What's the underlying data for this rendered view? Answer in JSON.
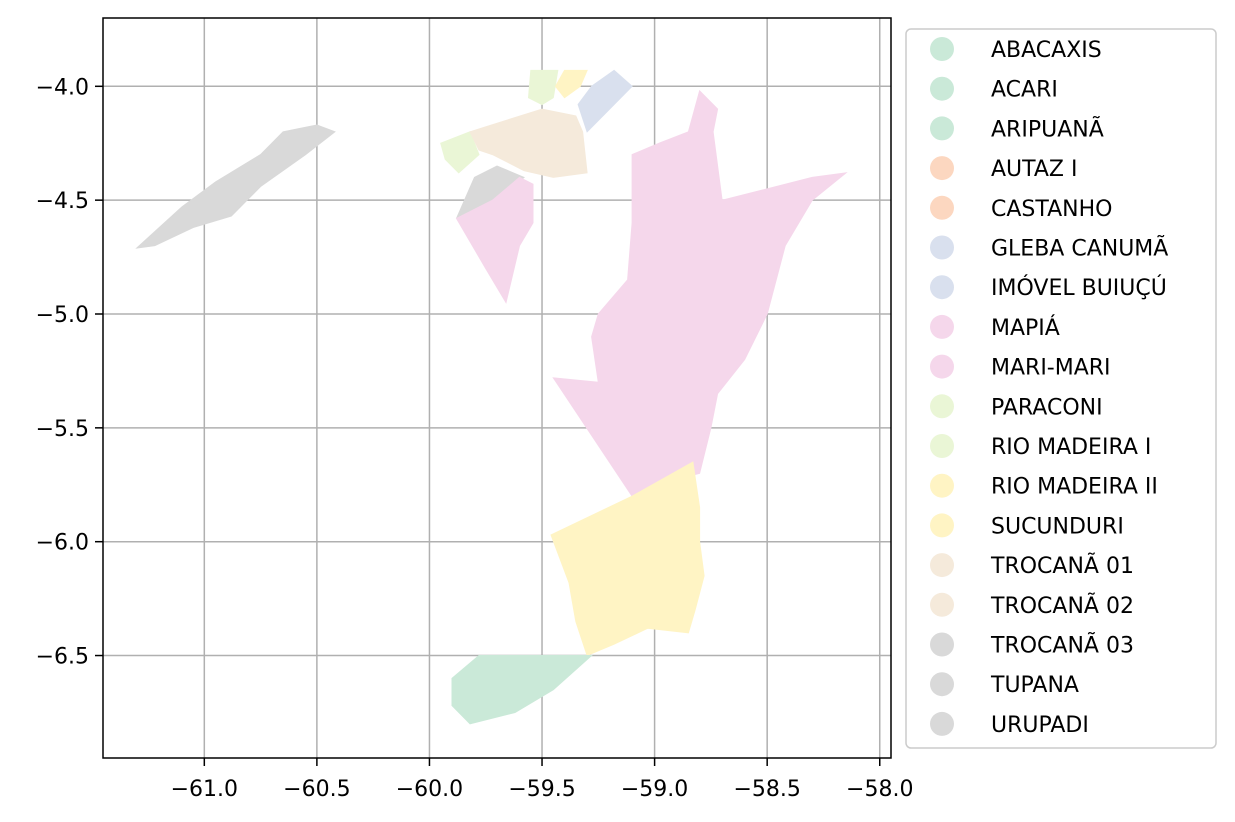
{
  "chart_data": {
    "type": "map",
    "xlim": [
      -61.45,
      -57.95
    ],
    "ylim": [
      -6.95,
      -3.7
    ],
    "x_ticks": [
      {
        "value": -61.0,
        "label": "−61.0"
      },
      {
        "value": -60.5,
        "label": "−60.5"
      },
      {
        "value": -60.0,
        "label": "−60.0"
      },
      {
        "value": -59.5,
        "label": "−59.5"
      },
      {
        "value": -59.0,
        "label": "−59.0"
      },
      {
        "value": -58.5,
        "label": "−58.5"
      },
      {
        "value": -58.0,
        "label": "−58.0"
      }
    ],
    "y_ticks": [
      {
        "value": -4.0,
        "label": "−4.0"
      },
      {
        "value": -4.5,
        "label": "−4.5"
      },
      {
        "value": -5.0,
        "label": "−5.0"
      },
      {
        "value": -5.5,
        "label": "−5.5"
      },
      {
        "value": -6.0,
        "label": "−6.0"
      },
      {
        "value": -6.5,
        "label": "−6.5"
      }
    ],
    "grid": true,
    "legend_position": "outside-right",
    "legend": [
      {
        "name": "ABACAXIS",
        "color": "#cae9d8"
      },
      {
        "name": "ACARI",
        "color": "#cae9d8"
      },
      {
        "name": "ARIPUANÃ",
        "color": "#cae9d8"
      },
      {
        "name": "AUTAZ I",
        "color": "#fcd7c0"
      },
      {
        "name": "CASTANHO",
        "color": "#fcd7c0"
      },
      {
        "name": "GLEBA CANUMÃ",
        "color": "#d9e0ee"
      },
      {
        "name": "IMÓVEL BUIUÇÚ",
        "color": "#d9e0ee"
      },
      {
        "name": "MAPIÁ",
        "color": "#f5d7eb"
      },
      {
        "name": "MARI-MARI",
        "color": "#f5d7eb"
      },
      {
        "name": "PARACONI",
        "color": "#eaf6d6"
      },
      {
        "name": "RIO MADEIRA I",
        "color": "#eaf6d6"
      },
      {
        "name": "RIO MADEIRA II",
        "color": "#fff4c4"
      },
      {
        "name": "SUCUNDURI",
        "color": "#fff4c4"
      },
      {
        "name": "TROCANÃ 01",
        "color": "#f5eadb"
      },
      {
        "name": "TROCANÃ 02",
        "color": "#f5eadb"
      },
      {
        "name": "TROCANÃ 03",
        "color": "#d9d9d9"
      },
      {
        "name": "TUPANA",
        "color": "#d9d9d9"
      },
      {
        "name": "URUPADI",
        "color": "#d9d9d9"
      }
    ],
    "regions": [
      {
        "color": "#d9d9d9",
        "coords": [
          [
            -61.3,
            -4.71
          ],
          [
            -61.1,
            -4.53
          ],
          [
            -60.95,
            -4.42
          ],
          [
            -60.75,
            -4.3
          ],
          [
            -60.65,
            -4.2
          ],
          [
            -60.5,
            -4.17
          ],
          [
            -60.42,
            -4.2
          ],
          [
            -60.55,
            -4.3
          ],
          [
            -60.75,
            -4.44
          ],
          [
            -60.88,
            -4.57
          ],
          [
            -61.05,
            -4.62
          ],
          [
            -61.22,
            -4.7
          ]
        ]
      },
      {
        "color": "#d9d9d9",
        "coords": [
          [
            -59.88,
            -4.58
          ],
          [
            -59.8,
            -4.4
          ],
          [
            -59.7,
            -4.35
          ],
          [
            -59.58,
            -4.4
          ],
          [
            -59.7,
            -4.5
          ],
          [
            -59.78,
            -4.64
          ]
        ]
      },
      {
        "color": "#eaf6d6",
        "coords": [
          [
            -59.95,
            -4.25
          ],
          [
            -59.82,
            -4.2
          ],
          [
            -59.78,
            -4.3
          ],
          [
            -59.87,
            -4.38
          ],
          [
            -59.93,
            -4.32
          ]
        ]
      },
      {
        "color": "#f5eadb",
        "coords": [
          [
            -59.82,
            -4.2
          ],
          [
            -59.5,
            -4.1
          ],
          [
            -59.35,
            -4.13
          ],
          [
            -59.32,
            -4.2
          ],
          [
            -59.3,
            -4.38
          ],
          [
            -59.45,
            -4.4
          ],
          [
            -59.58,
            -4.37
          ],
          [
            -59.72,
            -4.3
          ],
          [
            -59.78,
            -4.28
          ]
        ]
      },
      {
        "color": "#eaf6d6",
        "coords": [
          [
            -59.55,
            -3.93
          ],
          [
            -59.43,
            -3.93
          ],
          [
            -59.45,
            -4.05
          ],
          [
            -59.5,
            -4.08
          ],
          [
            -59.56,
            -4.05
          ]
        ]
      },
      {
        "color": "#fff4c4",
        "coords": [
          [
            -59.4,
            -3.93
          ],
          [
            -59.3,
            -3.93
          ],
          [
            -59.33,
            -4.0
          ],
          [
            -59.4,
            -4.05
          ],
          [
            -59.44,
            -4.0
          ]
        ]
      },
      {
        "color": "#d9e0ee",
        "coords": [
          [
            -59.28,
            -4.0
          ],
          [
            -59.18,
            -3.93
          ],
          [
            -59.1,
            -4.0
          ],
          [
            -59.22,
            -4.12
          ],
          [
            -59.3,
            -4.2
          ],
          [
            -59.34,
            -4.08
          ]
        ]
      },
      {
        "color": "#f5d7eb",
        "coords": [
          [
            -59.88,
            -4.58
          ],
          [
            -59.72,
            -4.5
          ],
          [
            -59.6,
            -4.4
          ],
          [
            -59.54,
            -4.43
          ],
          [
            -59.54,
            -4.6
          ],
          [
            -59.6,
            -4.7
          ],
          [
            -59.66,
            -4.95
          ],
          [
            -59.75,
            -4.8
          ]
        ]
      },
      {
        "color": "#f5d7eb",
        "coords": [
          [
            -58.8,
            -4.02
          ],
          [
            -58.85,
            -4.2
          ],
          [
            -58.98,
            -4.25
          ],
          [
            -59.1,
            -4.3
          ],
          [
            -59.1,
            -4.6
          ],
          [
            -59.12,
            -4.85
          ],
          [
            -59.25,
            -5.0
          ],
          [
            -59.28,
            -5.1
          ],
          [
            -59.25,
            -5.3
          ],
          [
            -59.45,
            -5.28
          ],
          [
            -59.1,
            -5.8
          ],
          [
            -59.0,
            -5.75
          ],
          [
            -58.8,
            -5.7
          ],
          [
            -58.75,
            -5.5
          ],
          [
            -58.72,
            -5.35
          ],
          [
            -58.6,
            -5.2
          ],
          [
            -58.5,
            -5.0
          ],
          [
            -58.42,
            -4.7
          ],
          [
            -58.3,
            -4.5
          ],
          [
            -58.15,
            -4.38
          ],
          [
            -58.3,
            -4.4
          ],
          [
            -58.5,
            -4.45
          ],
          [
            -58.7,
            -4.5
          ],
          [
            -58.74,
            -4.2
          ],
          [
            -58.72,
            -4.1
          ]
        ]
      },
      {
        "color": "#fff4c4",
        "coords": [
          [
            -59.46,
            -5.97
          ],
          [
            -59.1,
            -5.8
          ],
          [
            -58.83,
            -5.65
          ],
          [
            -58.8,
            -5.85
          ],
          [
            -58.8,
            -6.0
          ],
          [
            -58.78,
            -6.15
          ],
          [
            -58.82,
            -6.3
          ],
          [
            -58.85,
            -6.4
          ],
          [
            -59.03,
            -6.38
          ],
          [
            -59.18,
            -6.45
          ],
          [
            -59.3,
            -6.5
          ],
          [
            -59.35,
            -6.35
          ],
          [
            -59.38,
            -6.18
          ]
        ]
      },
      {
        "color": "#cae9d8",
        "coords": [
          [
            -59.28,
            -6.5
          ],
          [
            -59.6,
            -6.5
          ],
          [
            -59.78,
            -6.5
          ],
          [
            -59.9,
            -6.6
          ],
          [
            -59.9,
            -6.72
          ],
          [
            -59.82,
            -6.8
          ],
          [
            -59.62,
            -6.75
          ],
          [
            -59.45,
            -6.65
          ]
        ]
      }
    ]
  }
}
